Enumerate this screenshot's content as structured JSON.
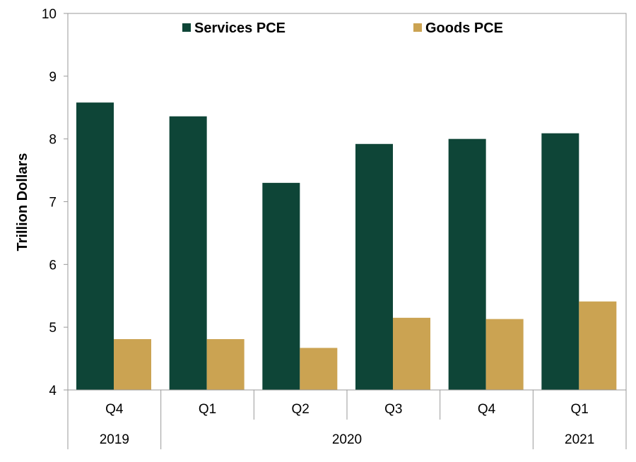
{
  "chart_data": {
    "type": "bar",
    "title": "",
    "xlabel": "",
    "ylabel": "Trillion Dollars",
    "ylim": [
      4,
      10
    ],
    "yticks": [
      "4",
      "5",
      "6",
      "7",
      "8",
      "9",
      "10"
    ],
    "grid": false,
    "legend_position": "top",
    "categories": [
      "Q4",
      "Q1",
      "Q2",
      "Q3",
      "Q4",
      "Q1"
    ],
    "year_groups": [
      {
        "label": "2019",
        "start": 0,
        "end": 0
      },
      {
        "label": "2020",
        "start": 1,
        "end": 4
      },
      {
        "label": "2021",
        "start": 5,
        "end": 5
      }
    ],
    "series": [
      {
        "name": "Services PCE",
        "color": "#0e4537",
        "values": [
          8.58,
          8.36,
          7.3,
          7.92,
          8.0,
          8.09
        ]
      },
      {
        "name": "Goods PCE",
        "color": "#cba352",
        "values": [
          4.81,
          4.81,
          4.67,
          5.15,
          5.13,
          5.41
        ]
      }
    ]
  }
}
